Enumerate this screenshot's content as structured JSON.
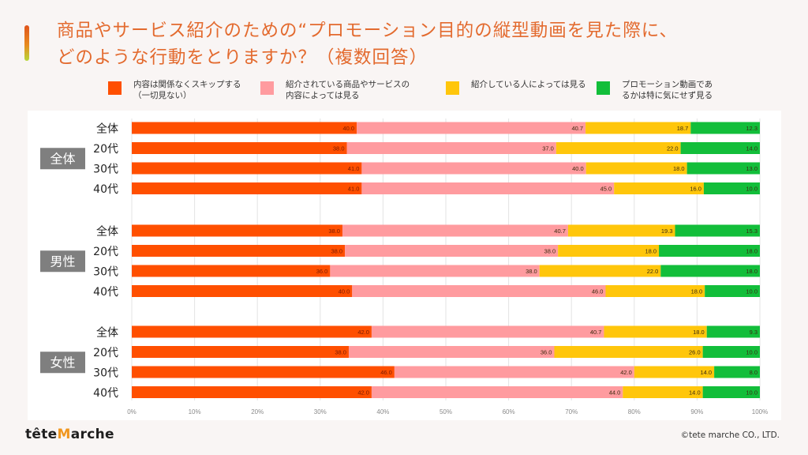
{
  "title": {
    "line1": "商品やサービス紹介のための“プロモーション目的の縦型動画を見た際に、",
    "line2": "どのような行動をとりますか？（複数回答）"
  },
  "colors": {
    "accent": "#e36a2e",
    "series": [
      "#ff4f00",
      "#ff9b9f",
      "#ffc60b",
      "#12be3a"
    ],
    "group_label_bg": "#7f7f7f"
  },
  "footer": {
    "logo_pre": "tête",
    "logo_m": "M",
    "logo_post": "arche",
    "copyright": "©tete marche CO., LTD."
  },
  "chart_data": {
    "type": "bar",
    "orientation": "horizontal",
    "stacked": "percent",
    "title": "商品やサービス紹介のための“プロモーション目的の縦型動画を見た際に、どのような行動をとりますか？（複数回答）",
    "xlabel": "",
    "ylabel": "",
    "xlim": [
      0,
      100
    ],
    "x_ticks": [
      "0%",
      "10%",
      "20%",
      "30%",
      "40%",
      "50%",
      "60%",
      "70%",
      "80%",
      "90%",
      "100%"
    ],
    "grid": true,
    "legend_position": "top",
    "legend": [
      "内容は関係なくスキップする\n（一切見ない）",
      "紹介されている商品やサービスの\n内容によっては見る",
      "紹介している人によっては見る",
      "プロモーション動画であ\nるかは特に気にせず見る"
    ],
    "groups": [
      {
        "label": "全体",
        "categories": [
          "全体",
          "20代",
          "30代",
          "40代"
        ]
      },
      {
        "label": "男性",
        "categories": [
          "全体",
          "20代",
          "30代",
          "40代"
        ]
      },
      {
        "label": "女性",
        "categories": [
          "全体",
          "20代",
          "30代",
          "40代"
        ]
      }
    ],
    "series": [
      {
        "name": "内容は関係なくスキップする（一切見ない）",
        "values": [
          [
            40.0,
            38.0,
            41.0,
            41.0
          ],
          [
            38.0,
            38.0,
            36.0,
            40.0
          ],
          [
            42.0,
            38.0,
            46.0,
            42.0
          ]
        ]
      },
      {
        "name": "紹介されている商品やサービスの内容によっては見る",
        "values": [
          [
            40.7,
            37.0,
            40.0,
            45.0
          ],
          [
            40.7,
            38.0,
            38.0,
            46.0
          ],
          [
            40.7,
            36.0,
            42.0,
            44.0
          ]
        ]
      },
      {
        "name": "紹介している人によっては見る",
        "values": [
          [
            18.7,
            22.0,
            18.0,
            16.0
          ],
          [
            19.3,
            18.0,
            22.0,
            18.0
          ],
          [
            18.0,
            26.0,
            14.0,
            14.0
          ]
        ]
      },
      {
        "name": "プロモーション動画であるかは特に気にせず見る",
        "values": [
          [
            12.3,
            14.0,
            13.0,
            10.0
          ],
          [
            15.3,
            18.0,
            18.0,
            10.0
          ],
          [
            9.3,
            10.0,
            8.0,
            10.0
          ]
        ]
      }
    ]
  }
}
